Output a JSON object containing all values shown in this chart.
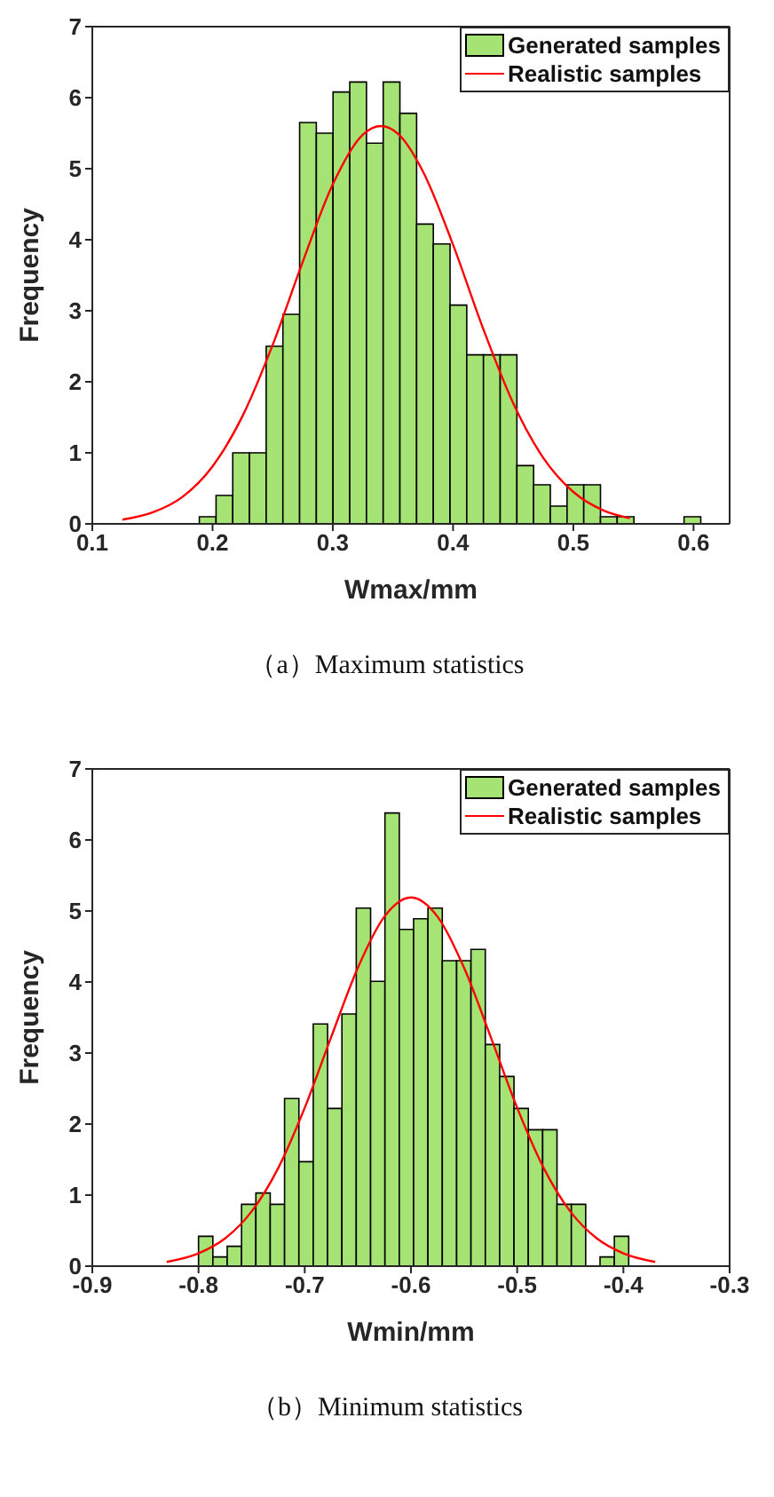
{
  "chart_data": [
    {
      "type": "histogram",
      "xlabel": "Wmax/mm",
      "ylabel": "Frequency",
      "legend": "top right",
      "annotations": [
        "（a）Maximum statistics"
      ],
      "xlim": [
        0.1,
        0.63
      ],
      "xticks": [
        0.1,
        0.2,
        0.3,
        0.4,
        0.5,
        0.6
      ],
      "ylim": [
        0,
        7
      ],
      "yticks": [
        0,
        1,
        2,
        3,
        4,
        5,
        6,
        7
      ],
      "bins": [
        0.189,
        0.2029,
        0.2168,
        0.2307,
        0.2446,
        0.2585,
        0.2724,
        0.2863,
        0.3002,
        0.3141,
        0.328,
        0.3419,
        0.3558,
        0.3697,
        0.3836,
        0.3975,
        0.4114,
        0.4253,
        0.4392,
        0.4531,
        0.467,
        0.4809,
        0.4948,
        0.5087,
        0.5226,
        0.5365,
        0.5504,
        0.5643,
        0.5782,
        0.5921,
        0.606
      ],
      "series": [
        {
          "name": "Generated samples",
          "color": "#a4e374",
          "values": [
            0.1,
            0.4,
            1.0,
            1.0,
            2.5,
            2.95,
            5.65,
            5.5,
            6.08,
            6.22,
            5.36,
            6.22,
            5.78,
            4.22,
            3.94,
            3.08,
            2.38,
            2.38,
            2.38,
            0.82,
            0.55,
            0.25,
            0.55,
            0.55,
            0.1,
            0.1,
            0,
            0,
            0,
            0.1
          ]
        },
        {
          "type": "line",
          "name": "Realistic samples",
          "color": "#ff0000",
          "x": [
            0.125,
            0.15,
            0.175,
            0.2,
            0.225,
            0.25,
            0.275,
            0.3,
            0.325,
            0.34,
            0.355,
            0.375,
            0.4,
            0.425,
            0.45,
            0.475,
            0.5,
            0.525,
            0.547
          ],
          "values": [
            0.06,
            0.16,
            0.38,
            0.81,
            1.52,
            2.52,
            3.69,
            4.78,
            5.48,
            5.6,
            5.48,
            4.96,
            3.93,
            2.75,
            1.7,
            0.93,
            0.45,
            0.19,
            0.08
          ]
        }
      ]
    },
    {
      "type": "histogram",
      "xlabel": "Wmin/mm",
      "ylabel": "Frequency",
      "legend": "top right",
      "annotations": [
        "（b）Minimum statistics"
      ],
      "xlim": [
        -0.9,
        -0.3
      ],
      "xticks": [
        -0.9,
        -0.8,
        -0.7,
        -0.6,
        -0.5,
        -0.4,
        -0.3
      ],
      "ylim": [
        0,
        7
      ],
      "yticks": [
        0,
        1,
        2,
        3,
        4,
        5,
        6,
        7
      ],
      "bins": [
        -0.8,
        -0.7865,
        -0.773,
        -0.7595,
        -0.746,
        -0.7325,
        -0.719,
        -0.7055,
        -0.692,
        -0.6785,
        -0.665,
        -0.6515,
        -0.638,
        -0.6245,
        -0.611,
        -0.5975,
        -0.584,
        -0.5705,
        -0.557,
        -0.5435,
        -0.53,
        -0.5165,
        -0.503,
        -0.4895,
        -0.476,
        -0.4625,
        -0.449,
        -0.4355,
        -0.422,
        -0.4085,
        -0.395
      ],
      "series": [
        {
          "name": "Generated samples",
          "color": "#a4e374",
          "values": [
            0.42,
            0.13,
            0.28,
            0.87,
            1.03,
            0.87,
            2.36,
            1.47,
            3.41,
            2.22,
            3.55,
            5.04,
            4.01,
            6.38,
            4.74,
            4.89,
            5.04,
            4.3,
            4.3,
            4.46,
            3.12,
            2.67,
            2.22,
            1.92,
            1.92,
            0.87,
            0.87,
            0,
            0.13,
            0.42
          ]
        },
        {
          "type": "line",
          "name": "Realistic samples",
          "color": "#ff0000",
          "x": [
            -0.83,
            -0.8,
            -0.775,
            -0.75,
            -0.725,
            -0.7,
            -0.675,
            -0.65,
            -0.625,
            -0.6,
            -0.575,
            -0.55,
            -0.525,
            -0.5,
            -0.475,
            -0.45,
            -0.425,
            -0.4,
            -0.37
          ],
          "values": [
            0.06,
            0.18,
            0.39,
            0.77,
            1.38,
            2.23,
            3.23,
            4.2,
            4.92,
            5.19,
            4.92,
            4.2,
            3.23,
            2.23,
            1.38,
            0.77,
            0.39,
            0.18,
            0.06
          ]
        }
      ]
    }
  ]
}
